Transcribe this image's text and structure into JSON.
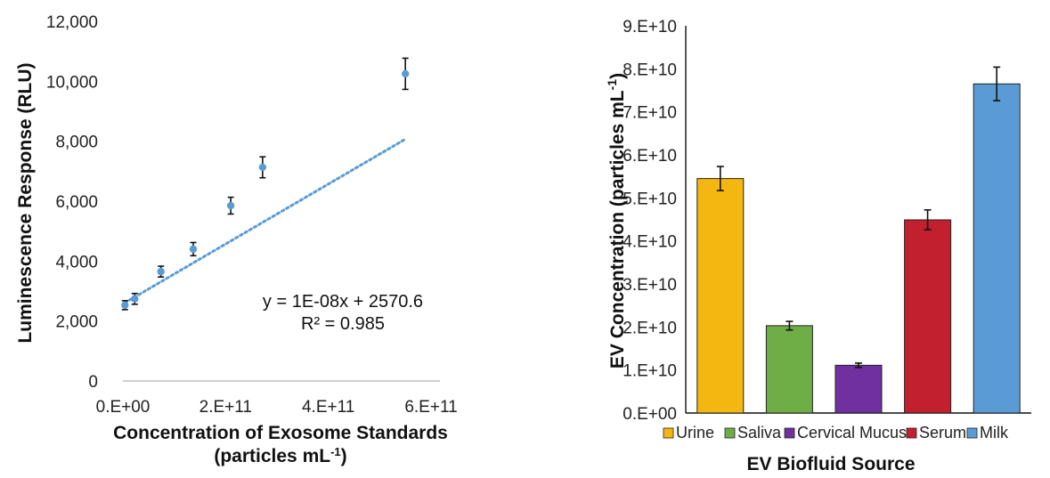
{
  "chart_data": [
    {
      "type": "scatter",
      "ylabel": "Luminescence Response (RLU)",
      "xlabel_line1": "Concentration of Exosome Standards",
      "xlabel_line2": "(particles mL",
      "xlabel_sup": "-1",
      "xlabel_close": ")",
      "xlim": [
        0,
        600000000000
      ],
      "ylim": [
        0,
        12000
      ],
      "x_ticks": [
        0,
        200000000000,
        400000000000,
        600000000000
      ],
      "x_tick_labels": [
        "0.E+00",
        "2.E+11",
        "4.E+11",
        "6.E+11"
      ],
      "y_ticks": [
        0,
        2000,
        4000,
        6000,
        8000,
        10000,
        12000
      ],
      "y_tick_labels": [
        "0",
        "2,000",
        "4,000",
        "6,000",
        "8,000",
        "10,000",
        "12,000"
      ],
      "points": [
        {
          "x": 4000000000,
          "y": 2530,
          "err": 150
        },
        {
          "x": 23000000000,
          "y": 2740,
          "err": 180
        },
        {
          "x": 74000000000,
          "y": 3650,
          "err": 180
        },
        {
          "x": 137000000000,
          "y": 4400,
          "err": 220
        },
        {
          "x": 210000000000,
          "y": 5850,
          "err": 280
        },
        {
          "x": 272000000000,
          "y": 7130,
          "err": 350
        },
        {
          "x": 550000000000,
          "y": 10250,
          "err": 520
        }
      ],
      "trendline": {
        "slope": 1e-08,
        "intercept": 2570.6,
        "x_start": 4000000000,
        "x_end": 550000000000
      },
      "equation": "y = 1E-08x + 2570.6",
      "r_squared": "R² = 0.985",
      "marker_color": "#5b9bd5"
    },
    {
      "type": "bar",
      "ylabel": "EV Concentration (particles mL",
      "ylabel_sup": "-1",
      "ylabel_close": ")",
      "xlabel": "EV Biofluid Source",
      "categories": [
        "Urine",
        "Saliva",
        "Cervical Mucus",
        "Serum",
        "Milk"
      ],
      "values": [
        54500000000,
        20300000000,
        11100000000,
        44900000000,
        76500000000
      ],
      "errors": [
        2800000000,
        1000000000,
        500000000,
        2300000000,
        3900000000
      ],
      "colors": [
        "#f4b711",
        "#6fad47",
        "#7030a0",
        "#c21f2f",
        "#5b9bd5"
      ],
      "ylim": [
        0,
        90000000000
      ],
      "y_ticks": [
        0,
        10000000000,
        20000000000,
        30000000000,
        40000000000,
        50000000000,
        60000000000,
        70000000000,
        80000000000,
        90000000000
      ],
      "y_tick_labels": [
        "0.E+00",
        "1.E+10",
        "2.E+10",
        "3.E+10",
        "4.E+10",
        "5.E+10",
        "6.E+10",
        "7.E+10",
        "8.E+10",
        "9.E+10"
      ],
      "legend_position": "bottom"
    }
  ]
}
